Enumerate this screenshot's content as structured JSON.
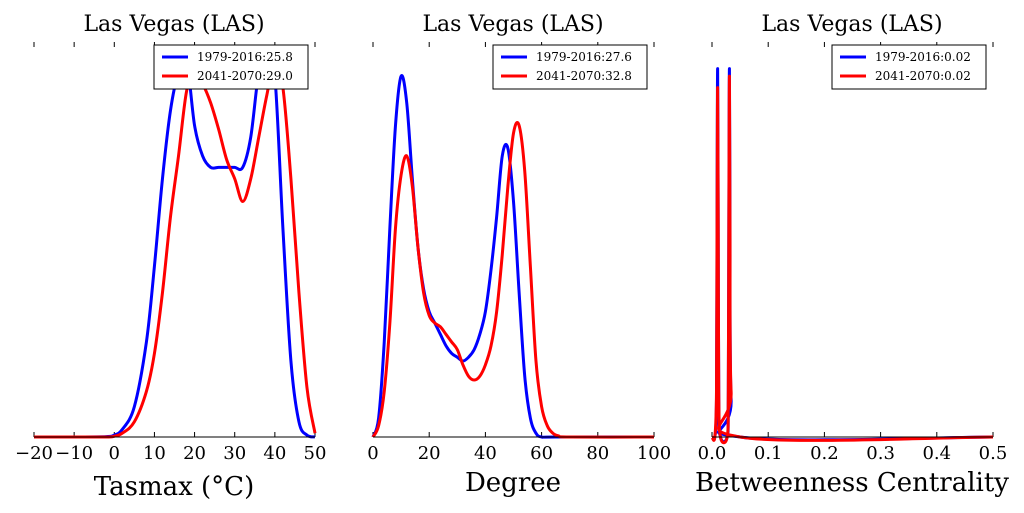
{
  "chart_data": [
    {
      "type": "line",
      "title": "Las Vegas (LAS)",
      "xlabel": "Tasmax ($^\\circ$C)",
      "xlabel_display": "Tasmax (°C)",
      "ylabel": "",
      "xlim": [
        -20,
        50
      ],
      "xticks": [
        -20,
        -10,
        0,
        10,
        20,
        30,
        40,
        50
      ],
      "legend_position": "upper-right",
      "series": [
        {
          "name": "1979-2016:25.8",
          "color": "#0000ff",
          "x": [
            -20,
            -10,
            -2,
            0,
            2,
            5,
            8,
            10,
            12,
            14,
            16,
            18,
            20,
            22,
            24,
            26,
            28,
            30,
            32,
            34,
            36,
            38,
            40,
            42,
            44,
            46,
            48,
            50
          ],
          "y": [
            0,
            0,
            0.001,
            0.005,
            0.02,
            0.08,
            0.25,
            0.45,
            0.68,
            0.86,
            0.96,
            0.99,
            0.82,
            0.74,
            0.71,
            0.71,
            0.71,
            0.71,
            0.71,
            0.79,
            0.96,
            1.02,
            0.95,
            0.55,
            0.2,
            0.04,
            0.005,
            0
          ]
        },
        {
          "name": "2041-2070:29.0",
          "color": "#ff0000",
          "x": [
            -20,
            -10,
            -2,
            0,
            2,
            5,
            8,
            10,
            12,
            14,
            16,
            18,
            20,
            22,
            24,
            26,
            28,
            30,
            32,
            34,
            36,
            38,
            40,
            42,
            44,
            46,
            48,
            50
          ],
          "y": [
            0,
            0,
            0,
            0.002,
            0.01,
            0.04,
            0.12,
            0.22,
            0.38,
            0.58,
            0.74,
            0.91,
            0.96,
            0.93,
            0.88,
            0.81,
            0.73,
            0.68,
            0.62,
            0.68,
            0.79,
            0.9,
            0.99,
            0.92,
            0.68,
            0.38,
            0.13,
            0.01
          ]
        }
      ]
    },
    {
      "type": "line",
      "title": "Las Vegas (LAS)",
      "xlabel": "Degree",
      "ylabel": "",
      "xlim": [
        0,
        100
      ],
      "xticks": [
        0,
        20,
        40,
        60,
        80,
        100
      ],
      "legend_position": "upper-right",
      "series": [
        {
          "name": "1979-2016:27.6",
          "color": "#0000ff",
          "x": [
            0,
            2,
            4,
            6,
            8,
            10,
            12,
            14,
            16,
            18,
            20,
            22,
            24,
            26,
            28,
            30,
            32,
            34,
            36,
            38,
            40,
            42,
            44,
            46,
            48,
            50,
            52,
            54,
            56,
            58,
            60,
            65,
            100
          ],
          "y": [
            0,
            0.05,
            0.25,
            0.55,
            0.82,
            0.95,
            0.88,
            0.68,
            0.5,
            0.39,
            0.33,
            0.3,
            0.27,
            0.24,
            0.22,
            0.21,
            0.2,
            0.21,
            0.23,
            0.27,
            0.33,
            0.44,
            0.58,
            0.74,
            0.76,
            0.62,
            0.38,
            0.16,
            0.05,
            0.01,
            0,
            0,
            0
          ]
        },
        {
          "name": "2041-2070:32.8",
          "color": "#ff0000",
          "x": [
            0,
            2,
            4,
            6,
            8,
            10,
            12,
            14,
            16,
            18,
            20,
            22,
            24,
            26,
            28,
            30,
            32,
            34,
            36,
            38,
            40,
            42,
            44,
            46,
            48,
            50,
            52,
            54,
            56,
            58,
            60,
            62,
            64,
            66,
            70,
            100
          ],
          "y": [
            0,
            0.03,
            0.12,
            0.3,
            0.55,
            0.69,
            0.74,
            0.66,
            0.5,
            0.38,
            0.32,
            0.3,
            0.29,
            0.27,
            0.25,
            0.23,
            0.19,
            0.16,
            0.15,
            0.16,
            0.19,
            0.24,
            0.33,
            0.48,
            0.66,
            0.8,
            0.82,
            0.7,
            0.45,
            0.2,
            0.08,
            0.03,
            0.01,
            0.003,
            0,
            0
          ]
        }
      ]
    },
    {
      "type": "line",
      "title": "Las Vegas (LAS)",
      "xlabel": "Betweenness Centrality",
      "ylabel": "",
      "xlim": [
        0,
        0.5
      ],
      "xticks": [
        0.0,
        0.1,
        0.2,
        0.3,
        0.4,
        0.5
      ],
      "legend_position": "upper-right",
      "series": [
        {
          "name": "1979-2016:0.02",
          "color": "#0000ff",
          "x": [
            0,
            0.005,
            0.008,
            0.009,
            0.01,
            0.011,
            0.012,
            0.015,
            0.027,
            0.029,
            0.03,
            0.031,
            0.032,
            0.034,
            0.05,
            0.5
          ],
          "y": [
            0,
            0,
            0.1,
            0.6,
            0.97,
            0.6,
            0.1,
            0,
            0,
            0.1,
            0.6,
            0.97,
            0.6,
            0.1,
            0,
            0
          ]
        },
        {
          "name": "2041-2070:0.02",
          "color": "#ff0000",
          "x": [
            0,
            0.005,
            0.008,
            0.009,
            0.01,
            0.011,
            0.012,
            0.015,
            0.027,
            0.029,
            0.03,
            0.031,
            0.032,
            0.034,
            0.05,
            0.5
          ],
          "y": [
            0,
            0,
            0.12,
            0.55,
            0.92,
            0.55,
            0.12,
            0,
            0,
            0.12,
            0.55,
            0.95,
            0.55,
            0.12,
            0,
            0
          ]
        }
      ]
    }
  ]
}
